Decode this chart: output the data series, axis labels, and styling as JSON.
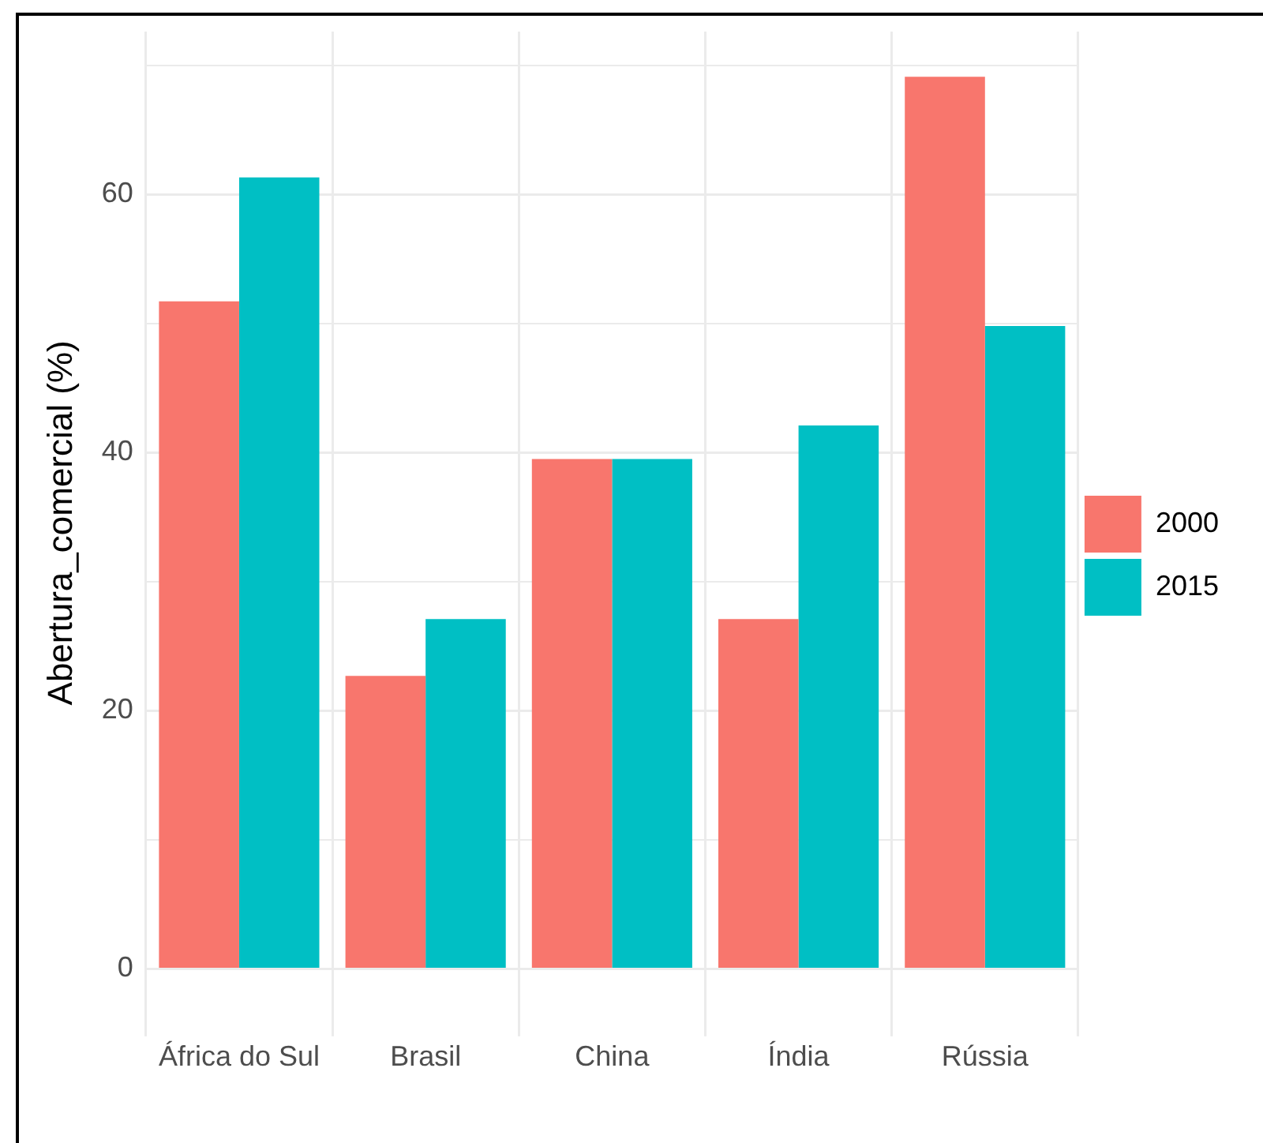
{
  "chart_data": {
    "type": "bar",
    "ylabel": "Abertura_comercial (%)",
    "categories": [
      "África do Sul",
      "Brasil",
      "China",
      "Índia",
      "Rússia"
    ],
    "series": [
      {
        "name": "2000",
        "color": "#f8766d",
        "values": [
          51.7,
          22.7,
          39.5,
          27.1,
          69.1
        ]
      },
      {
        "name": "2015",
        "color": "#00bfc4",
        "values": [
          61.3,
          27.1,
          39.5,
          42.1,
          49.8
        ]
      }
    ],
    "ylim": [
      -3.5,
      72.6
    ],
    "yticks": [
      0,
      {
        "value": 10,
        "label": null
      },
      20,
      {
        "value": 30,
        "label": null
      },
      40,
      {
        "value": 50,
        "label": null
      },
      60,
      {
        "value": 70,
        "label": null
      }
    ],
    "grid": true,
    "legend": "right"
  }
}
